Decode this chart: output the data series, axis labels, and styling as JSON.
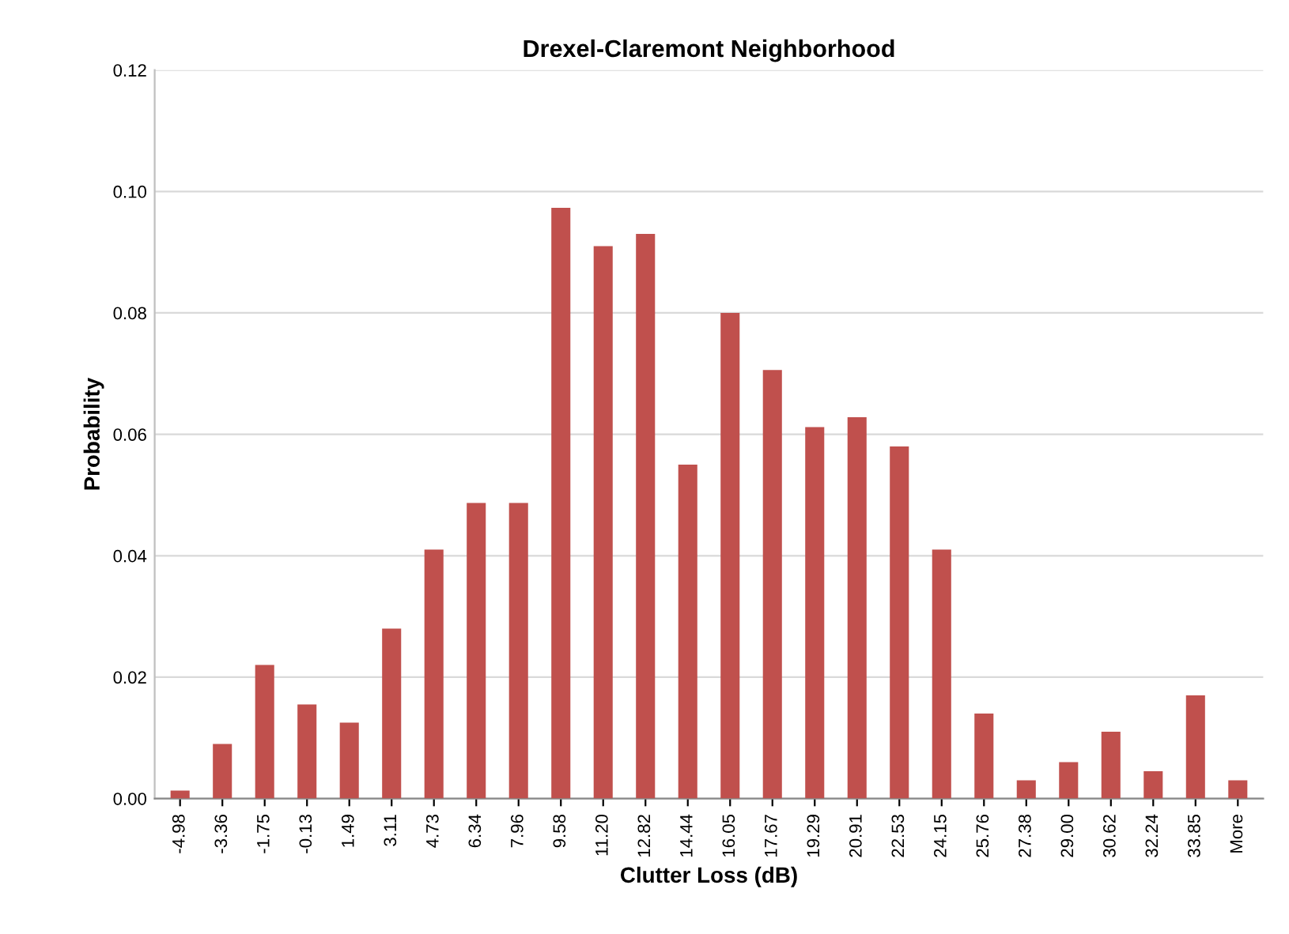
{
  "chart_data": {
    "type": "bar",
    "title": "Drexel-Claremont Neighborhood",
    "xlabel": "Clutter Loss (dB)",
    "ylabel": "Probability",
    "categories": [
      "-4.98",
      "-3.36",
      "-1.75",
      "-0.13",
      "1.49",
      "3.11",
      "4.73",
      "6.34",
      "7.96",
      "9.58",
      "11.20",
      "12.82",
      "14.44",
      "16.05",
      "17.67",
      "19.29",
      "20.91",
      "22.53",
      "24.15",
      "25.76",
      "27.38",
      "29.00",
      "30.62",
      "32.24",
      "33.85",
      "More"
    ],
    "values": [
      0.0013,
      0.009,
      0.022,
      0.0155,
      0.0125,
      0.028,
      0.041,
      0.0487,
      0.0487,
      0.0973,
      0.091,
      0.093,
      0.055,
      0.08,
      0.0706,
      0.0612,
      0.0628,
      0.058,
      0.041,
      0.014,
      0.003,
      0.006,
      0.011,
      0.0045,
      0.017,
      0.003
    ],
    "color": "#c0504d",
    "ylim": [
      0,
      0.12
    ],
    "yticks": [
      {
        "value": 0,
        "label": "0.00"
      },
      {
        "value": 0.02,
        "label": "0.02"
      },
      {
        "value": 0.04,
        "label": "0.04"
      },
      {
        "value": 0.06,
        "label": "0.06"
      },
      {
        "value": 0.08,
        "label": "0.08"
      },
      {
        "value": 0.1,
        "label": "0.10"
      },
      {
        "value": 0.12,
        "label": "0.12"
      }
    ],
    "grid": "y",
    "legend": false
  }
}
